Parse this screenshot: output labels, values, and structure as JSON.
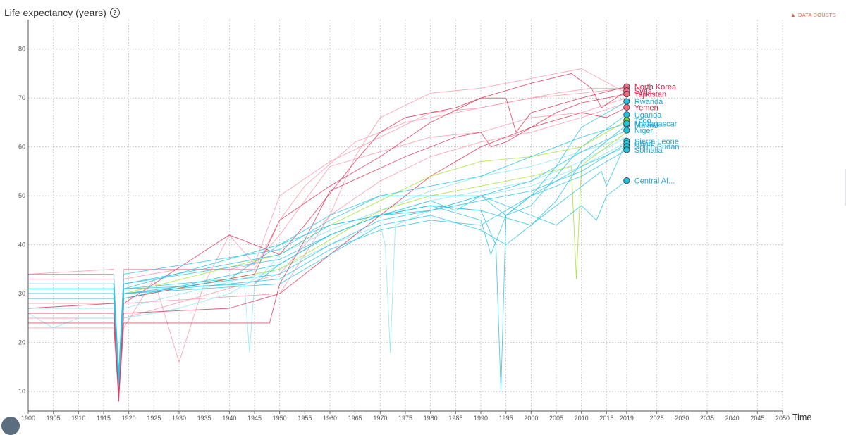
{
  "header": {
    "title": "Life expectancy (years)",
    "help_icon": "question-circle-icon",
    "data_doubts_label": "DATA DOUBTS",
    "data_doubts_color": "#e8623a"
  },
  "x_axis_label": "Time",
  "chart_data": {
    "type": "line",
    "title": "",
    "ylabel": "Life expectancy (years)",
    "xlabel": "Time",
    "xlim": [
      1900,
      2050
    ],
    "ylim": [
      6,
      86
    ],
    "grid": true,
    "x_ticks": [
      1900,
      1905,
      1910,
      1915,
      1920,
      1925,
      1930,
      1935,
      1940,
      1945,
      1950,
      1955,
      1960,
      1965,
      1970,
      1975,
      1980,
      1985,
      1990,
      1995,
      2000,
      2005,
      2010,
      2015,
      2019,
      2025,
      2030,
      2035,
      2040,
      2045,
      2050
    ],
    "y_ticks": [
      10,
      20,
      30,
      40,
      50,
      60,
      70,
      80
    ],
    "end_year": 2019,
    "series": [
      {
        "name": "North Korea",
        "color": "#e0385a",
        "label": true,
        "x": [
          1900,
          1917,
          1918,
          1919,
          1940,
          1950,
          1955,
          1965,
          1970,
          1975,
          1985,
          1990,
          1995,
          1997,
          2000,
          2010,
          2019
        ],
        "y": [
          27,
          28,
          10,
          28,
          42,
          38,
          44,
          57,
          63,
          66,
          68,
          70,
          70,
          63,
          67,
          70,
          72.3
        ]
      },
      {
        "name": "Syria",
        "color": "#e0385a",
        "label": true,
        "x": [
          1900,
          1917,
          1918,
          1919,
          1945,
          1950,
          1960,
          1970,
          1980,
          1990,
          2000,
          2008,
          2012,
          2014,
          2019
        ],
        "y": [
          29,
          29,
          8,
          29,
          34,
          45,
          52,
          58,
          65,
          70,
          73,
          75,
          72,
          68,
          71.5
        ]
      },
      {
        "name": "Tajikistan",
        "color": "#e0385a",
        "label": true,
        "x": [
          1900,
          1917,
          1918,
          1919,
          1948,
          1950,
          1955,
          1960,
          1975,
          1985,
          1990,
          1992,
          1995,
          2000,
          2005,
          2010,
          2019
        ],
        "y": [
          24,
          24,
          9,
          24,
          24,
          32,
          41,
          51,
          58,
          62,
          63,
          60,
          61,
          64,
          67,
          69,
          70.8
        ]
      },
      {
        "name": "Rwanda",
        "color": "#29c5e6",
        "label": true,
        "x": [
          1900,
          1917,
          1918,
          1919,
          1940,
          1950,
          1960,
          1970,
          1980,
          1990,
          1993,
          1994,
          1995,
          2000,
          2005,
          2010,
          2019
        ],
        "y": [
          31,
          31,
          11,
          31,
          33,
          40,
          44,
          46,
          48,
          47,
          40,
          10,
          46,
          50,
          56,
          64,
          69.3
        ]
      },
      {
        "name": "Yemen",
        "color": "#e0385a",
        "label": true,
        "x": [
          1900,
          1917,
          1918,
          1919,
          1940,
          1950,
          1960,
          1970,
          1980,
          1990,
          2000,
          2010,
          2015,
          2019
        ],
        "y": [
          26,
          26,
          10,
          26,
          27,
          30,
          38,
          46,
          54,
          60,
          64,
          67,
          66,
          68.1
        ]
      },
      {
        "name": "Uganda",
        "color": "#29c5e6",
        "label": true,
        "x": [
          1900,
          1917,
          1918,
          1919,
          1950,
          1960,
          1970,
          1980,
          1990,
          1995,
          2000,
          2005,
          2010,
          2019
        ],
        "y": [
          31,
          31,
          12,
          31,
          40,
          46,
          50,
          50,
          50,
          46,
          48,
          54,
          60,
          66.6
        ]
      },
      {
        "name": "Togo",
        "color": "#a6e22e",
        "label": true,
        "x": [
          1900,
          1917,
          1918,
          1919,
          1950,
          1960,
          1970,
          1980,
          1990,
          2000,
          2010,
          2019
        ],
        "y": [
          30,
          30,
          13,
          30,
          38,
          44,
          49,
          54,
          57,
          58,
          60,
          65.4
        ]
      },
      {
        "name": "Malawi",
        "color": "#29c5e6",
        "label": true,
        "x": [
          1900,
          1917,
          1918,
          1919,
          1950,
          1960,
          1970,
          1980,
          1990,
          2000,
          2005,
          2010,
          2019
        ],
        "y": [
          29,
          29,
          12,
          29,
          36,
          42,
          46,
          48,
          47,
          44,
          49,
          57,
          64.5
        ]
      },
      {
        "name": "Niger",
        "color": "#29c5e6",
        "label": true,
        "x": [
          1900,
          1917,
          1918,
          1919,
          1950,
          1960,
          1970,
          1980,
          1985,
          1990,
          2000,
          2010,
          2019
        ],
        "y": [
          32,
          32,
          12,
          32,
          38,
          44,
          46,
          49,
          47,
          50,
          53,
          59,
          63.4
        ]
      },
      {
        "name": "Madagascar",
        "color": "#29c5e6",
        "label": true,
        "x": [
          1900,
          1917,
          1918,
          1919,
          1950,
          1960,
          1970,
          1980,
          1990,
          2000,
          2010,
          2019
        ],
        "y": [
          34,
          34,
          14,
          34,
          39,
          45,
          50,
          52,
          54,
          58,
          62,
          64.8
        ]
      },
      {
        "name": "Sierra Leone",
        "color": "#29c5e6",
        "label": true,
        "x": [
          1900,
          1917,
          1918,
          1919,
          1950,
          1960,
          1970,
          1980,
          1990,
          1995,
          2000,
          2005,
          2014,
          2015,
          2019
        ],
        "y": [
          30,
          30,
          11,
          30,
          32,
          38,
          44,
          46,
          43,
          40,
          44,
          48,
          55,
          52,
          61.2
        ]
      },
      {
        "name": "Chad",
        "color": "#29c5e6",
        "label": true,
        "x": [
          1900,
          1917,
          1918,
          1919,
          1950,
          1960,
          1970,
          1980,
          1990,
          2000,
          2010,
          2019
        ],
        "y": [
          32,
          32,
          13,
          32,
          37,
          42,
          46,
          47,
          49,
          51,
          55,
          60.7
        ]
      },
      {
        "name": "South Sudan",
        "color": "#29c5e6",
        "label": true,
        "x": [
          1900,
          1917,
          1918,
          1919,
          1950,
          1960,
          1970,
          1980,
          1990,
          2000,
          2010,
          2019
        ],
        "y": [
          30,
          30,
          12,
          30,
          33,
          39,
          43,
          45,
          44,
          50,
          56,
          60.1
        ]
      },
      {
        "name": "Somalia",
        "color": "#29c5e6",
        "label": true,
        "x": [
          1900,
          1917,
          1918,
          1919,
          1945,
          1950,
          1960,
          1970,
          1980,
          1990,
          1992,
          1995,
          2000,
          2010,
          2019
        ],
        "y": [
          31,
          31,
          12,
          31,
          32,
          36,
          42,
          46,
          48,
          45,
          38,
          46,
          50,
          54,
          59.4
        ]
      },
      {
        "name": "Central Af...",
        "color": "#29c5e6",
        "label": true,
        "x": [
          1900,
          1917,
          1918,
          1919,
          1950,
          1960,
          1970,
          1980,
          1990,
          2000,
          2005,
          2010,
          2013,
          2015,
          2019
        ],
        "y": [
          30,
          30,
          12,
          30,
          34,
          40,
          45,
          47,
          50,
          46,
          44,
          48,
          45,
          50,
          53.1
        ]
      },
      {
        "name": "",
        "color": "#ff96aa",
        "label": false,
        "x": [
          1900,
          1917,
          1918,
          1919,
          1930,
          1940,
          1945,
          1950,
          1960,
          1970,
          1980,
          1990,
          2000,
          2010,
          2019
        ],
        "y": [
          34,
          35,
          10,
          35,
          35,
          35,
          36,
          50,
          57,
          62,
          67,
          68,
          70,
          71,
          72
        ]
      },
      {
        "name": "",
        "color": "#ff96aa",
        "label": false,
        "x": [
          1900,
          1917,
          1918,
          1919,
          1950,
          1960,
          1965,
          1970,
          1980,
          1990,
          2000,
          2005,
          2010,
          2019
        ],
        "y": [
          28,
          28,
          9,
          28,
          30,
          46,
          58,
          66,
          71,
          72,
          74,
          75,
          76,
          71
        ]
      },
      {
        "name": "",
        "color": "#ff96aa",
        "label": false,
        "x": [
          1900,
          1917,
          1918,
          1919,
          1930,
          1945,
          1950,
          1955,
          1965,
          1975,
          1985,
          1995,
          2005,
          2012,
          2019
        ],
        "y": [
          33,
          33,
          10,
          33,
          35,
          35,
          45,
          52,
          61,
          65,
          67,
          69,
          71,
          72,
          72
        ]
      },
      {
        "name": "",
        "color": "#ff96aa",
        "label": false,
        "x": [
          1900,
          1917,
          1918,
          1919,
          1925,
          1930,
          1935,
          1940,
          1945,
          1950,
          1960,
          1970,
          1980,
          1990,
          2000,
          2010,
          2019
        ],
        "y": [
          23,
          23,
          8,
          23,
          33,
          16,
          32,
          42,
          36,
          42,
          56,
          59,
          62,
          63,
          66,
          67,
          70
        ]
      },
      {
        "name": "",
        "color": "#ff96aa",
        "label": false,
        "x": [
          1900,
          1917,
          1918,
          1919,
          1950,
          1960,
          1970,
          1980,
          1990,
          2000,
          2010,
          2019
        ],
        "y": [
          25,
          25,
          9,
          25,
          34,
          46,
          53,
          58,
          61,
          63,
          66,
          69
        ]
      },
      {
        "name": "",
        "color": "#8ce6f5",
        "label": false,
        "x": [
          1900,
          1917,
          1918,
          1919,
          1935,
          1943,
          1944,
          1945,
          1950,
          1960,
          1970,
          1980,
          1990,
          2000,
          2010,
          2019
        ],
        "y": [
          32,
          32,
          14,
          32,
          32,
          32,
          18,
          32,
          38,
          43,
          47,
          51,
          54,
          56,
          59,
          62
        ]
      },
      {
        "name": "",
        "color": "#8ce6f5",
        "label": false,
        "x": [
          1900,
          1917,
          1918,
          1919,
          1950,
          1960,
          1970,
          1971,
          1972,
          1973,
          1980,
          1990,
          2000,
          2010,
          2019
        ],
        "y": [
          27,
          27,
          12,
          27,
          35,
          40,
          44,
          40,
          18,
          44,
          47,
          50,
          52,
          56,
          61
        ]
      },
      {
        "name": "",
        "color": "#8ce6f5",
        "label": false,
        "x": [
          1900,
          1905,
          1910,
          1917,
          1918,
          1919,
          1925,
          1930,
          1940,
          1950,
          1960,
          1970,
          1980,
          1990,
          2000,
          2010,
          2019
        ],
        "y": [
          26,
          23,
          25,
          25,
          12,
          25,
          26,
          27,
          30,
          36,
          42,
          46,
          49,
          51,
          53,
          57,
          62
        ]
      },
      {
        "name": "",
        "color": "#a6e22e",
        "label": false,
        "x": [
          1900,
          1917,
          1918,
          1919,
          1950,
          1960,
          1970,
          1980,
          1990,
          2000,
          2008,
          2009,
          2010,
          2011,
          2019
        ],
        "y": [
          29,
          29,
          13,
          29,
          35,
          41,
          47,
          50,
          52,
          54,
          56,
          33,
          56,
          57,
          63
        ]
      }
    ]
  }
}
